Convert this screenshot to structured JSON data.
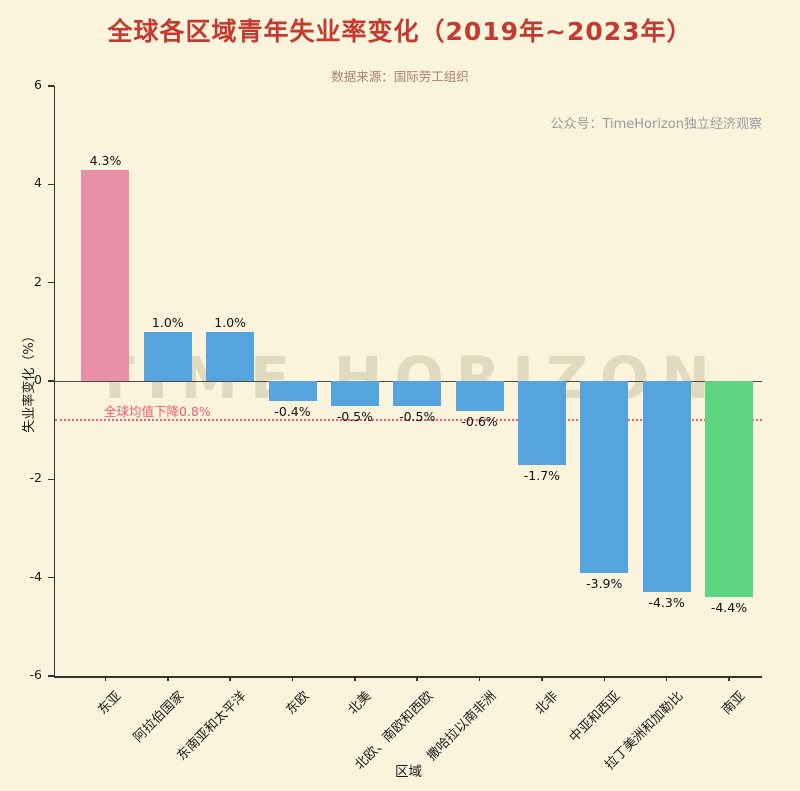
{
  "header": {
    "title": "全球各区域青年失业率变化（2019年~2023年）",
    "data_source": "数据来源：国际劳工组织",
    "credit": "公众号：TimeHorizon独立经济观察"
  },
  "watermark": "TIME HORIZON",
  "style": {
    "background": "#fbf4dc",
    "title_color": "#c23a30",
    "subtitle_color": "#a8806e",
    "credit_color": "#9b9b9b",
    "watermark_color": "#cfc5a9",
    "axis_color": "#333333",
    "bar_label_color": "#111111"
  },
  "chart_data": {
    "type": "bar",
    "title": "全球各区域青年失业率变化（2019年~2023年）",
    "xlabel": "区域",
    "ylabel": "失业率变化（%）",
    "ylim": [
      -6,
      6
    ],
    "yticks": [
      -6,
      -4,
      -2,
      0,
      2,
      4,
      6
    ],
    "grid": false,
    "categories": [
      "东亚",
      "阿拉伯国家",
      "东南亚和太平洋",
      "东欧",
      "北美",
      "北欧、南欧和西欧",
      "撒哈拉以南非洲",
      "北非",
      "中亚和西亚",
      "拉丁美洲和加勒比",
      "南亚"
    ],
    "values": [
      4.3,
      1.0,
      1.0,
      -0.4,
      -0.5,
      -0.5,
      -0.6,
      -1.7,
      -3.9,
      -4.3,
      -4.4
    ],
    "value_labels": [
      "4.3%",
      "1.0%",
      "1.0%",
      "-0.4%",
      "-0.5%",
      "-0.5%",
      "-0.6%",
      "-1.7%",
      "-3.9%",
      "-4.3%",
      "-4.4%"
    ],
    "bar_colors": [
      "#e98fa8",
      "#55a4de",
      "#55a4de",
      "#55a4de",
      "#55a4de",
      "#55a4de",
      "#55a4de",
      "#55a4de",
      "#55a4de",
      "#55a4de",
      "#5fd584"
    ],
    "mean_line": {
      "value": -0.8,
      "label": "全球均值下降0.8%",
      "color": "#ef5b73"
    }
  }
}
